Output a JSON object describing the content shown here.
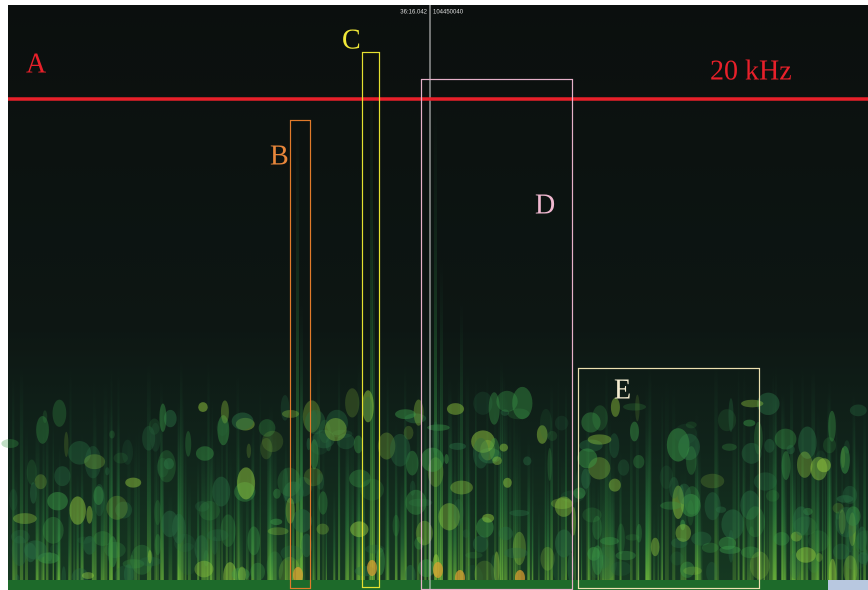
{
  "annotations": [
    "A",
    "B",
    "C",
    "D",
    "E"
  ],
  "frequency_line_label": "20 kHz",
  "cursor": {
    "time": "36:16.042",
    "sample": "104450040"
  }
}
